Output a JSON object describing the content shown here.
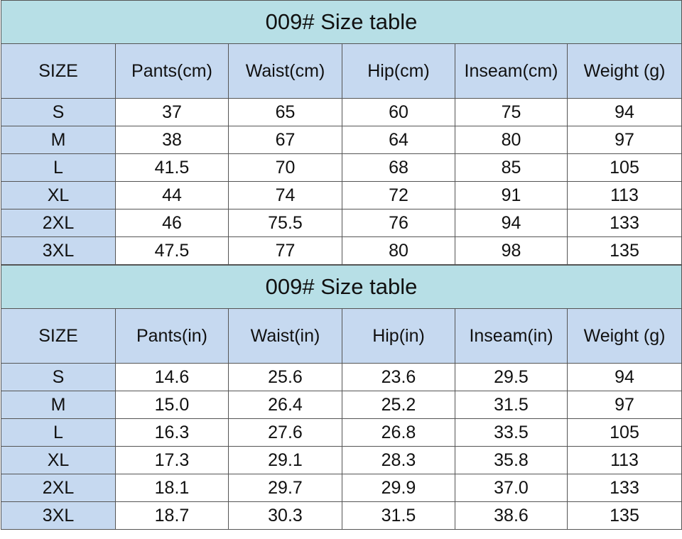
{
  "tables": [
    {
      "title": "009#  Size table",
      "header": [
        "SIZE",
        "Pants(cm)",
        "Waist(cm)",
        "Hip(cm)",
        "Inseam(cm)",
        "Weight (g)"
      ],
      "rows": [
        [
          "S",
          "37",
          "65",
          "60",
          "75",
          "94"
        ],
        [
          "M",
          "38",
          "67",
          "64",
          "80",
          "97"
        ],
        [
          "L",
          "41.5",
          "70",
          "68",
          "85",
          "105"
        ],
        [
          "XL",
          "44",
          "74",
          "72",
          "91",
          "113"
        ],
        [
          "2XL",
          "46",
          "75.5",
          "76",
          "94",
          "133"
        ],
        [
          "3XL",
          "47.5",
          "77",
          "80",
          "98",
          "135"
        ]
      ]
    },
    {
      "title": "009#  Size table",
      "header": [
        "SIZE",
        "Pants(in)",
        "Waist(in)",
        "Hip(in)",
        "Inseam(in)",
        "Weight (g)"
      ],
      "rows": [
        [
          "S",
          "14.6",
          "25.6",
          "23.6",
          "29.5",
          "94"
        ],
        [
          "M",
          "15.0",
          "26.4",
          "25.2",
          "31.5",
          "97"
        ],
        [
          "L",
          "16.3",
          "27.6",
          "26.8",
          "33.5",
          "105"
        ],
        [
          "XL",
          "17.3",
          "29.1",
          "28.3",
          "35.8",
          "113"
        ],
        [
          "2XL",
          "18.1",
          "29.7",
          "29.9",
          "37.0",
          "133"
        ],
        [
          "3XL",
          "18.7",
          "30.3",
          "31.5",
          "38.6",
          "135"
        ]
      ]
    }
  ]
}
